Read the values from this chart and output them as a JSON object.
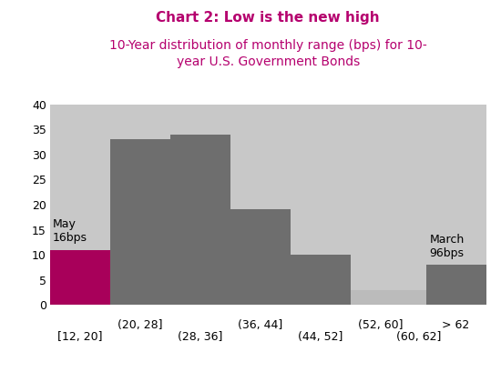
{
  "title_line1": "Chart 2: Low is the new high",
  "title_line2": "10-Year distribution of monthly range (bps) for 10-\nyear U.S. Government Bonds",
  "title_color": "#B5006E",
  "fig_background": "#FFFFFF",
  "plot_background": "#C8C8C8",
  "bar_left_edges": [
    12,
    20,
    28,
    36,
    44,
    52,
    60,
    62
  ],
  "bar_widths": [
    8,
    8,
    8,
    8,
    8,
    8,
    2,
    8
  ],
  "bar_heights": [
    11,
    33,
    34,
    19,
    10,
    3,
    3,
    8
  ],
  "bar_colors": [
    "#A8005A",
    "#6E6E6E",
    "#6E6E6E",
    "#6E6E6E",
    "#6E6E6E",
    "#BBBBBB",
    "#BBBBBB",
    "#6E6E6E"
  ],
  "ylim": [
    0,
    40
  ],
  "yticks": [
    0,
    5,
    10,
    15,
    20,
    25,
    30,
    35,
    40
  ],
  "xtick_row1": [
    "(20, 28]",
    "(36, 44]",
    "(52, 60]",
    "> 62"
  ],
  "xtick_row2": [
    "[12, 20]",
    "(28, 36]",
    "(44, 52]",
    "(60, 62]"
  ],
  "annotation_may_text": "May\n16bps",
  "annotation_march_text": "March\n96bps",
  "annotation_fontsize": 9,
  "xlim": [
    12,
    70
  ]
}
